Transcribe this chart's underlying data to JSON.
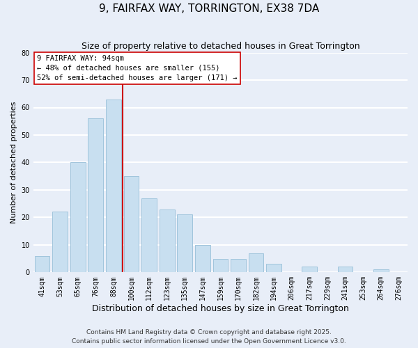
{
  "title": "9, FAIRFAX WAY, TORRINGTON, EX38 7DA",
  "subtitle": "Size of property relative to detached houses in Great Torrington",
  "xlabel": "Distribution of detached houses by size in Great Torrington",
  "ylabel": "Number of detached properties",
  "categories": [
    "41sqm",
    "53sqm",
    "65sqm",
    "76sqm",
    "88sqm",
    "100sqm",
    "112sqm",
    "123sqm",
    "135sqm",
    "147sqm",
    "159sqm",
    "170sqm",
    "182sqm",
    "194sqm",
    "206sqm",
    "217sqm",
    "229sqm",
    "241sqm",
    "253sqm",
    "264sqm",
    "276sqm"
  ],
  "values": [
    6,
    22,
    40,
    56,
    63,
    35,
    27,
    23,
    21,
    10,
    5,
    5,
    7,
    3,
    0,
    2,
    0,
    2,
    0,
    1,
    0
  ],
  "bar_color": "#c8dff0",
  "bar_edge_color": "#a0c4dc",
  "marker_line_color": "#cc0000",
  "annotation_line1": "9 FAIRFAX WAY: 94sqm",
  "annotation_line2": "← 48% of detached houses are smaller (155)",
  "annotation_line3": "52% of semi-detached houses are larger (171) →",
  "ylim": [
    0,
    80
  ],
  "yticks": [
    0,
    10,
    20,
    30,
    40,
    50,
    60,
    70,
    80
  ],
  "footer1": "Contains HM Land Registry data © Crown copyright and database right 2025.",
  "footer2": "Contains public sector information licensed under the Open Government Licence v3.0.",
  "background_color": "#e8eef8",
  "plot_background": "#e8eef8",
  "grid_color": "#ffffff",
  "title_fontsize": 11,
  "subtitle_fontsize": 9,
  "xlabel_fontsize": 9,
  "ylabel_fontsize": 8,
  "tick_fontsize": 7,
  "annotation_fontsize": 7.5,
  "footer_fontsize": 6.5
}
